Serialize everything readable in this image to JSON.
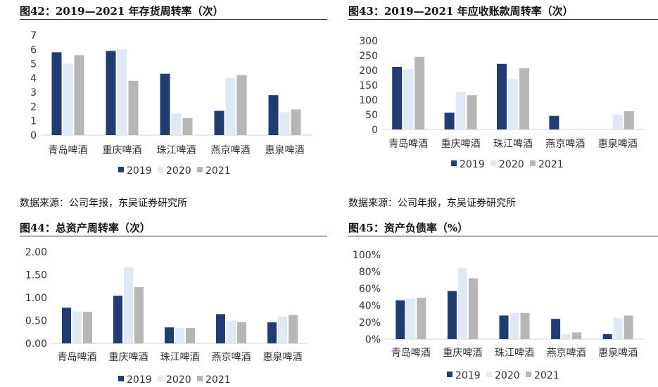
{
  "charts": [
    {
      "title": "图42：2019—2021 年存货周转率（次）",
      "source": "数据来源：公司年报，东吴证券研究所",
      "chart_data": {
        "type": "bar",
        "categories": [
          "青岛啤酒",
          "重庆啤酒",
          "珠江啤酒",
          "燕京啤酒",
          "惠泉啤酒"
        ],
        "series": [
          {
            "name": "2019",
            "values": [
              5.8,
              5.9,
              4.3,
              1.7,
              2.8
            ]
          },
          {
            "name": "2020",
            "values": [
              5.0,
              6.0,
              1.5,
              4.0,
              1.6
            ]
          },
          {
            "name": "2021",
            "values": [
              5.6,
              3.8,
              1.2,
              4.2,
              1.8
            ]
          }
        ],
        "ylim": [
          0,
          7
        ],
        "yticks": [
          "0",
          "1",
          "2",
          "3",
          "4",
          "5",
          "6",
          "7"
        ],
        "legend": "bottom",
        "grid": false
      }
    },
    {
      "title": "图43：2019—2021 年应收账款周转率（次）",
      "source": "数据来源：公司年报，东吴证券研究所",
      "chart_data": {
        "type": "bar",
        "categories": [
          "青岛啤酒",
          "重庆啤酒",
          "珠江啤酒",
          "燕京啤酒",
          "惠泉啤酒"
        ],
        "series": [
          {
            "name": "2019",
            "values": [
              212,
              57,
              222,
              46,
              0
            ]
          },
          {
            "name": "2020",
            "values": [
              204,
              126,
              170,
              0,
              49
            ]
          },
          {
            "name": "2021",
            "values": [
              246,
              116,
              207,
              0,
              62
            ]
          }
        ],
        "ylim": [
          0,
          300
        ],
        "yticks": [
          "0",
          "50",
          "100",
          "150",
          "200",
          "250",
          "300"
        ],
        "legend": "bottom",
        "grid": false
      }
    },
    {
      "title": "图44：总资产周转率（次）",
      "chart_data": {
        "type": "bar",
        "categories": [
          "青岛啤酒",
          "重庆啤酒",
          "珠江啤酒",
          "燕京啤酒",
          "惠泉啤酒"
        ],
        "series": [
          {
            "name": "2019",
            "values": [
              0.78,
              1.04,
              0.35,
              0.64,
              0.46
            ]
          },
          {
            "name": "2020",
            "values": [
              0.7,
              1.66,
              0.34,
              0.5,
              0.59
            ]
          },
          {
            "name": "2021",
            "values": [
              0.69,
              1.23,
              0.34,
              0.46,
              0.62
            ]
          }
        ],
        "ylim": [
          0,
          2.0
        ],
        "yticks": [
          "0.00",
          "0.50",
          "1.00",
          "1.50",
          "2.00"
        ],
        "legend": "bottom",
        "grid": false
      }
    },
    {
      "title": "图45：资产负债率（%）",
      "chart_data": {
        "type": "bar",
        "categories": [
          "青岛啤酒",
          "重庆啤酒",
          "珠江啤酒",
          "燕京啤酒",
          "惠泉啤酒"
        ],
        "series": [
          {
            "name": "2019",
            "values": [
              46,
              57,
              28,
              24,
              6
            ]
          },
          {
            "name": "2020",
            "values": [
              48,
              84,
              31,
              6,
              25
            ]
          },
          {
            "name": "2021",
            "values": [
              49,
              72,
              31,
              8,
              28
            ]
          }
        ],
        "ylim": [
          0,
          100
        ],
        "yticks": [
          "0%",
          "20%",
          "40%",
          "60%",
          "80%",
          "100%"
        ],
        "legend": "bottom",
        "grid": false
      }
    }
  ],
  "colors": [
    "#1f3c73",
    "#dfe8f5",
    "#b6b6b6"
  ]
}
